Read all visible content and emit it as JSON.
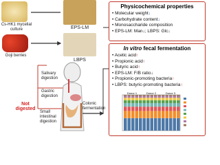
{
  "sources": [
    {
      "label": "Cs-HK1 mycelial culture",
      "product": "EPS-LM"
    },
    {
      "label": "Goji berries",
      "product": "LBPS"
    }
  ],
  "digestion": {
    "not_digested": "Not digested",
    "steps": [
      "Salivary digestion",
      "Gastric digestion",
      "Small intestinal digestion"
    ],
    "colonic": "Colonic fermentation"
  },
  "physicochemical": {
    "title": "Physicochemical properties",
    "items": [
      {
        "text": "Molecular weight",
        "arrow": "↓"
      },
      {
        "text": "Carbohydrate content",
        "arrow": "↓"
      },
      {
        "text": "Monosaccharide composition",
        "arrow": ""
      },
      {
        "text": "EPS-LM: Man↓; LBPS: Glc↓",
        "arrow": ""
      }
    ]
  },
  "fermentation": {
    "title_italic": "In vitro",
    "title": "fecal fermentation",
    "items": [
      {
        "text": "Acetic acid",
        "arrow": "↑"
      },
      {
        "text": "Propionic acid",
        "arrow": "↑"
      },
      {
        "text": "Butyric acid",
        "arrow": "↑"
      },
      {
        "text": "EPS-LM: F/B ratio↓",
        "arrow": ""
      },
      {
        "text": "Propionic-promoting bacteria",
        "arrow": "↑"
      },
      {
        "text": "LBPS: butyric-promoting bacteria",
        "arrow": "↑"
      }
    ],
    "donors": [
      "Donor 1",
      "Donor 2",
      "Donor 3"
    ]
  }
}
